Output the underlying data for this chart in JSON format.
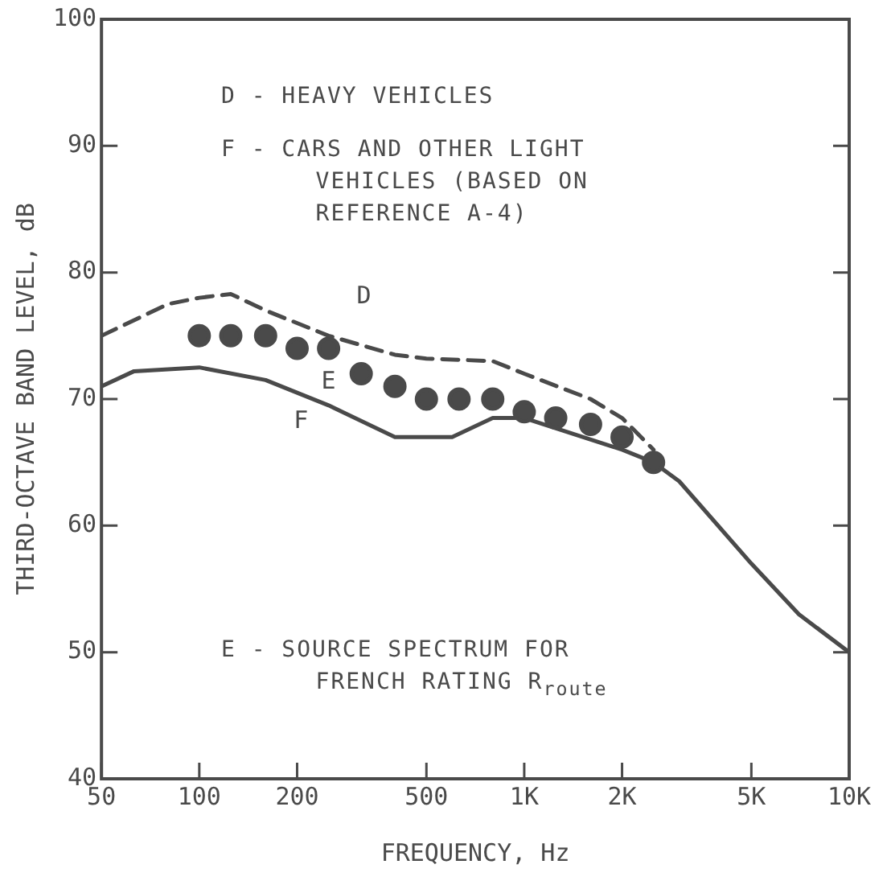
{
  "chart_data": {
    "type": "line",
    "xlabel": "FREQUENCY, Hz",
    "ylabel": "THIRD-OCTAVE BAND LEVEL, dB",
    "log": "x",
    "grid": false,
    "legend": false,
    "xlim": [
      50,
      10000
    ],
    "xticks": [
      50,
      100,
      200,
      500,
      {
        "value": 1000,
        "label": "1K"
      },
      {
        "value": 2000,
        "label": "2K"
      },
      {
        "value": 5000,
        "label": "5K"
      },
      {
        "value": 10000,
        "label": "10K"
      }
    ],
    "ylim": [
      40,
      100
    ],
    "yticks": [
      40,
      50,
      60,
      70,
      80,
      90,
      100
    ],
    "series": [
      {
        "name": "D",
        "type": "line",
        "line_style": "dashed",
        "marker": "none",
        "color": "#4a4a4a",
        "x": [
          50,
          80,
          100,
          125,
          160,
          250,
          400,
          500,
          800,
          1000,
          1600,
          2000,
          2500
        ],
        "values": [
          75,
          77.5,
          78,
          78.3,
          77,
          75,
          73.5,
          73.2,
          73,
          72,
          70,
          68.5,
          66
        ]
      },
      {
        "name": "E",
        "type": "scatter",
        "marker": "circle",
        "color": "#4a4a4a",
        "x": [
          100,
          125,
          160,
          200,
          250,
          315,
          400,
          500,
          630,
          800,
          1000,
          1250,
          1600,
          2000,
          2500
        ],
        "values": [
          75,
          75,
          75,
          74,
          74,
          72,
          71,
          70,
          70,
          70,
          69,
          68.5,
          68,
          67,
          65
        ]
      },
      {
        "name": "F",
        "type": "line",
        "line_style": "solid",
        "marker": "none",
        "color": "#4a4a4a",
        "x": [
          50,
          63,
          100,
          160,
          250,
          400,
          600,
          800,
          1000,
          2000,
          2500,
          3000,
          5000,
          7000,
          10000
        ],
        "values": [
          71,
          72.2,
          72.5,
          71.5,
          69.5,
          67,
          67,
          68.5,
          68.5,
          66,
          65,
          63.5,
          57,
          53,
          50
        ]
      }
    ],
    "annotations": [
      "D - HEAVY VEHICLES",
      "F - CARS AND OTHER LIGHT VEHICLES (BASED ON REFERENCE A-4)",
      "E - SOURCE SPECTRUM FOR FRENCH RATING R$_{route}$"
    ]
  }
}
